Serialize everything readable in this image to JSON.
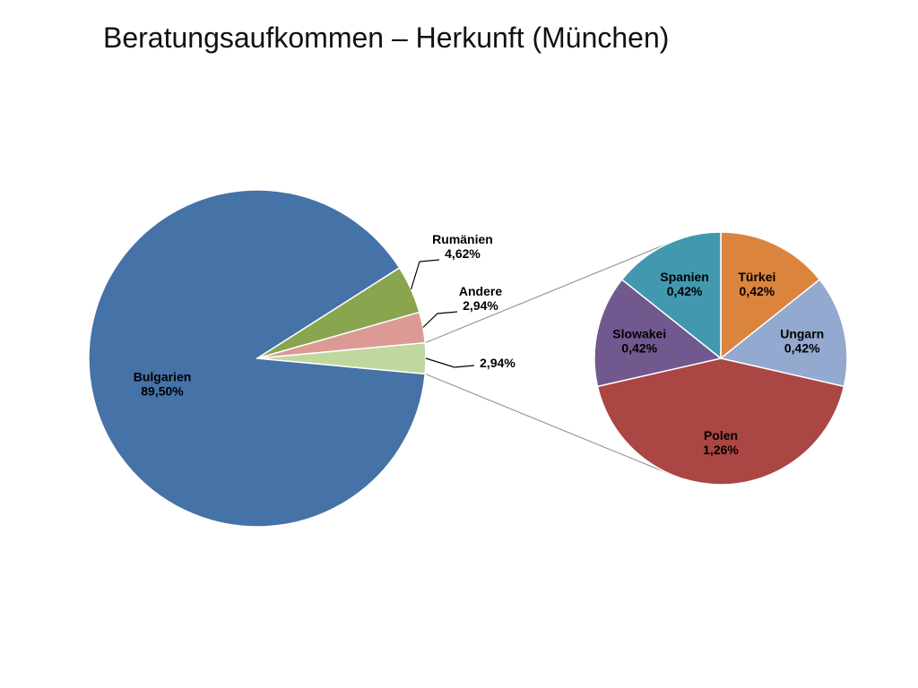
{
  "title": "Beratungsaufkommen – Herkunft (München)",
  "chart_data": {
    "type": "pie",
    "subtype": "pie-of-pie",
    "title": "Beratungsaufkommen – Herkunft (München)",
    "main": {
      "slices": [
        {
          "name": "Bulgarien",
          "value": 89.5,
          "label": "89,50%",
          "color": "#4572a7"
        },
        {
          "name": "Rumänien",
          "value": 4.62,
          "label": "4,62%",
          "color": "#89a54e"
        },
        {
          "name": "Andere",
          "value": 2.94,
          "label": "2,94%",
          "color": "#db9a94"
        },
        {
          "name": "",
          "value": 2.94,
          "label": "2,94%",
          "color": "#c0d8a0"
        }
      ]
    },
    "secondary": {
      "slices": [
        {
          "name": "Türkei",
          "value": 0.42,
          "label": "0,42%",
          "color": "#db843d"
        },
        {
          "name": "Ungarn",
          "value": 0.42,
          "label": "0,42%",
          "color": "#93a9cf"
        },
        {
          "name": "Polen",
          "value": 1.26,
          "label": "1,26%",
          "color": "#aa4643"
        },
        {
          "name": "Slowakei",
          "value": 0.42,
          "label": "0,42%",
          "color": "#71588f"
        },
        {
          "name": "Spanien",
          "value": 0.42,
          "label": "0,42%",
          "color": "#4198af"
        }
      ]
    },
    "legend": "none",
    "data_labels": "outside-and-inside"
  }
}
